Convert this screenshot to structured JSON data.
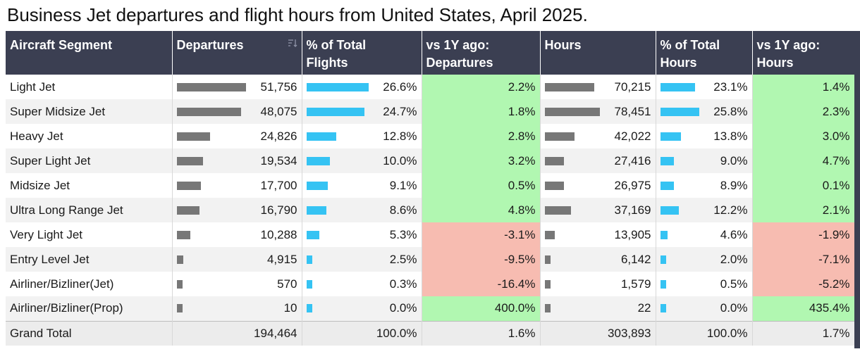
{
  "title": "Business Jet departures and flight hours from United States, April 2025.",
  "colors": {
    "header_bg": "#3b3f52",
    "bar_gray": "#777777",
    "bar_blue": "#35c3f3",
    "positive": "#b1f7b1",
    "negative": "#f7bcb1"
  },
  "headers": {
    "segment": "Aircraft Segment",
    "departures": "Departures",
    "pct_flights": "% of Total\nFlights",
    "vs_dep": "vs 1Y ago:\nDepartures",
    "hours": "Hours",
    "pct_hours": "% of Total\nHours",
    "vs_hours": "vs 1Y ago:\nHours"
  },
  "sort_icon": "sort-descending-icon",
  "chart_data": {
    "type": "table",
    "title": "Business Jet departures and flight hours from United States, April 2025.",
    "columns": [
      "Aircraft Segment",
      "Departures",
      "% of Total Flights",
      "vs 1Y ago: Departures",
      "Hours",
      "% of Total Hours",
      "vs 1Y ago: Hours"
    ],
    "rows": [
      {
        "segment": "Light Jet",
        "departures": 51756,
        "departures_text": "51,756",
        "pct_flights": "26.6%",
        "pct_flights_value": 26.6,
        "vs_dep": "2.2%",
        "vs_dep_value": 2.2,
        "hours": 70215,
        "hours_text": "70,215",
        "pct_hours": "23.1%",
        "pct_hours_value": 23.1,
        "vs_hours": "1.4%",
        "vs_hours_value": 1.4
      },
      {
        "segment": "Super Midsize Jet",
        "departures": 48075,
        "departures_text": "48,075",
        "pct_flights": "24.7%",
        "pct_flights_value": 24.7,
        "vs_dep": "1.8%",
        "vs_dep_value": 1.8,
        "hours": 78451,
        "hours_text": "78,451",
        "pct_hours": "25.8%",
        "pct_hours_value": 25.8,
        "vs_hours": "2.3%",
        "vs_hours_value": 2.3
      },
      {
        "segment": "Heavy Jet",
        "departures": 24826,
        "departures_text": "24,826",
        "pct_flights": "12.8%",
        "pct_flights_value": 12.8,
        "vs_dep": "2.8%",
        "vs_dep_value": 2.8,
        "hours": 42022,
        "hours_text": "42,022",
        "pct_hours": "13.8%",
        "pct_hours_value": 13.8,
        "vs_hours": "3.0%",
        "vs_hours_value": 3.0
      },
      {
        "segment": "Super Light Jet",
        "departures": 19534,
        "departures_text": "19,534",
        "pct_flights": "10.0%",
        "pct_flights_value": 10.0,
        "vs_dep": "3.2%",
        "vs_dep_value": 3.2,
        "hours": 27416,
        "hours_text": "27,416",
        "pct_hours": "9.0%",
        "pct_hours_value": 9.0,
        "vs_hours": "4.7%",
        "vs_hours_value": 4.7
      },
      {
        "segment": "Midsize Jet",
        "departures": 17700,
        "departures_text": "17,700",
        "pct_flights": "9.1%",
        "pct_flights_value": 9.1,
        "vs_dep": "0.5%",
        "vs_dep_value": 0.5,
        "hours": 26975,
        "hours_text": "26,975",
        "pct_hours": "8.9%",
        "pct_hours_value": 8.9,
        "vs_hours": "0.1%",
        "vs_hours_value": 0.1
      },
      {
        "segment": "Ultra Long Range Jet",
        "departures": 16790,
        "departures_text": "16,790",
        "pct_flights": "8.6%",
        "pct_flights_value": 8.6,
        "vs_dep": "4.8%",
        "vs_dep_value": 4.8,
        "hours": 37169,
        "hours_text": "37,169",
        "pct_hours": "12.2%",
        "pct_hours_value": 12.2,
        "vs_hours": "2.1%",
        "vs_hours_value": 2.1
      },
      {
        "segment": "Very Light Jet",
        "departures": 10288,
        "departures_text": "10,288",
        "pct_flights": "5.3%",
        "pct_flights_value": 5.3,
        "vs_dep": "-3.1%",
        "vs_dep_value": -3.1,
        "hours": 13905,
        "hours_text": "13,905",
        "pct_hours": "4.6%",
        "pct_hours_value": 4.6,
        "vs_hours": "-1.9%",
        "vs_hours_value": -1.9
      },
      {
        "segment": "Entry Level Jet",
        "departures": 4915,
        "departures_text": "4,915",
        "pct_flights": "2.5%",
        "pct_flights_value": 2.5,
        "vs_dep": "-9.5%",
        "vs_dep_value": -9.5,
        "hours": 6142,
        "hours_text": "6,142",
        "pct_hours": "2.0%",
        "pct_hours_value": 2.0,
        "vs_hours": "-7.1%",
        "vs_hours_value": -7.1
      },
      {
        "segment": "Airliner/Bizliner(Jet)",
        "departures": 570,
        "departures_text": "570",
        "pct_flights": "0.3%",
        "pct_flights_value": 0.3,
        "vs_dep": "-16.4%",
        "vs_dep_value": -16.4,
        "hours": 1579,
        "hours_text": "1,579",
        "pct_hours": "0.5%",
        "pct_hours_value": 0.5,
        "vs_hours": "-5.2%",
        "vs_hours_value": -5.2
      },
      {
        "segment": "Airliner/Bizliner(Prop)",
        "departures": 10,
        "departures_text": "10",
        "pct_flights": "0.0%",
        "pct_flights_value": 0.0,
        "vs_dep": "400.0%",
        "vs_dep_value": 400.0,
        "hours": 22,
        "hours_text": "22",
        "pct_hours": "0.0%",
        "pct_hours_value": 0.0,
        "vs_hours": "435.4%",
        "vs_hours_value": 435.4
      }
    ],
    "total": {
      "segment": "Grand Total",
      "departures": "194,464",
      "pct_flights": "100.0%",
      "vs_dep": "1.6%",
      "hours": "303,893",
      "pct_hours": "100.0%",
      "vs_hours": "1.7%"
    }
  }
}
